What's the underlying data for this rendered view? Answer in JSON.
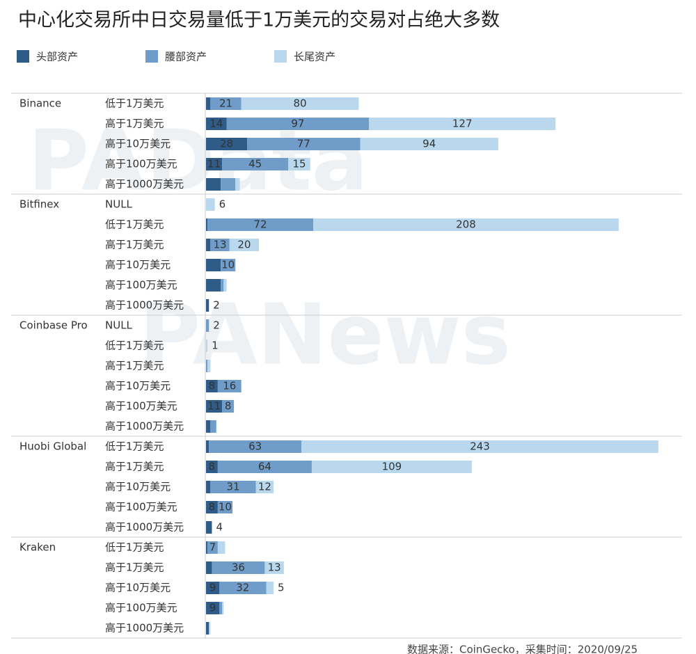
{
  "chart_data": {
    "type": "bar",
    "orientation": "horizontal",
    "stacked": true,
    "title": "中心化交易所中日交易量低于1万美元的交易对占绝大多数",
    "groups": [
      {
        "name": "Binance",
        "categories": [
          "低于1万美元",
          "高于1万美元",
          "高于10万美元",
          "高于100万美元",
          "高于1000万美元"
        ]
      },
      {
        "name": "Bitfinex",
        "categories": [
          "NULL",
          "低于1万美元",
          "高于1万美元",
          "高于10万美元",
          "高于100万美元",
          "高于1000万美元"
        ]
      },
      {
        "name": "Coinbase Pro",
        "categories": [
          "NULL",
          "低于1万美元",
          "高于1万美元",
          "高于10万美元",
          "高于100万美元",
          "高于1000万美元"
        ]
      },
      {
        "name": "Huobi Global",
        "categories": [
          "低于1万美元",
          "高于1万美元",
          "高于10万美元",
          "高于100万美元",
          "高于1000万美元"
        ]
      },
      {
        "name": "Kraken",
        "categories": [
          "低于1万美元",
          "高于1万美元",
          "高于10万美元",
          "高于100万美元",
          "高于1000万美元"
        ]
      }
    ],
    "series": [
      {
        "name": "头部资产",
        "color": "#2e5b88",
        "values": [
          3,
          14,
          28,
          11,
          10,
          0,
          1,
          3,
          10,
          10,
          2,
          0,
          0,
          0,
          8,
          11,
          3,
          2,
          8,
          3,
          8,
          4,
          1,
          4,
          9,
          9,
          2
        ],
        "value_labels": [
          null,
          "14",
          "28",
          "11",
          null,
          null,
          null,
          null,
          null,
          null,
          "2",
          null,
          null,
          null,
          "8",
          "11",
          null,
          null,
          "8",
          null,
          "8",
          "4",
          null,
          null,
          "9",
          "9",
          null
        ]
      },
      {
        "name": "腰部资产",
        "color": "#6f9cc9",
        "values": [
          21,
          97,
          77,
          45,
          10,
          0,
          72,
          13,
          10,
          2,
          0,
          2,
          0,
          1,
          16,
          8,
          4,
          63,
          64,
          31,
          10,
          0,
          7,
          36,
          32,
          2,
          0
        ],
        "value_labels": [
          "21",
          "97",
          "77",
          "45",
          null,
          null,
          "72",
          "13",
          "10",
          null,
          null,
          "2",
          null,
          null,
          "16",
          "8",
          null,
          "63",
          "64",
          "31",
          "10",
          null,
          "7",
          "36",
          "32",
          null,
          null
        ]
      },
      {
        "name": "长尾资产",
        "color": "#b9d8ed",
        "values": [
          80,
          127,
          94,
          15,
          3,
          6,
          208,
          20,
          0,
          2,
          0,
          0,
          1,
          2,
          0,
          0,
          0,
          243,
          109,
          12,
          0,
          0,
          5,
          13,
          5,
          1,
          1
        ],
        "value_labels": [
          "80",
          "127",
          "94",
          "15",
          null,
          "6",
          "208",
          "20",
          null,
          null,
          null,
          null,
          "1",
          null,
          null,
          null,
          null,
          "243",
          "109",
          "12",
          null,
          null,
          null,
          "13",
          "5",
          null,
          null
        ]
      }
    ],
    "source": "数据来源：CoinGecko，采集时间：2020/09/25",
    "watermarks": [
      "PAData",
      "PANews"
    ]
  }
}
